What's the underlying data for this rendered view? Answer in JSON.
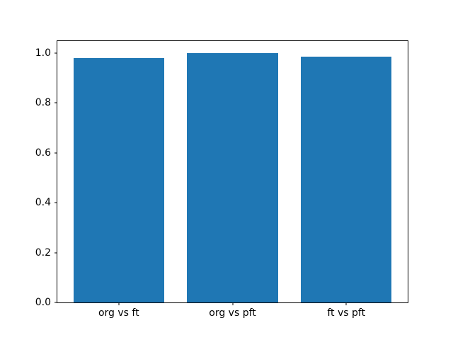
{
  "chart_data": {
    "type": "bar",
    "title": "",
    "xlabel": "",
    "ylabel": "",
    "categories": [
      "org vs ft",
      "org vs pft",
      "ft vs pft"
    ],
    "values": [
      0.978,
      0.998,
      0.986
    ],
    "yticks": [
      0.0,
      0.2,
      0.4,
      0.6,
      0.8,
      1.0
    ],
    "ytick_labels": [
      "0.0",
      "0.2",
      "0.4",
      "0.6",
      "0.8",
      "1.0"
    ],
    "ylim": [
      0,
      1.047
    ],
    "xlim": [
      -0.54,
      2.54
    ],
    "bar_width": 0.8,
    "bar_color": "#1f77b4",
    "grid": false,
    "legend_position": "none",
    "background_color": "#ffffff",
    "spine_color": "#000000"
  }
}
